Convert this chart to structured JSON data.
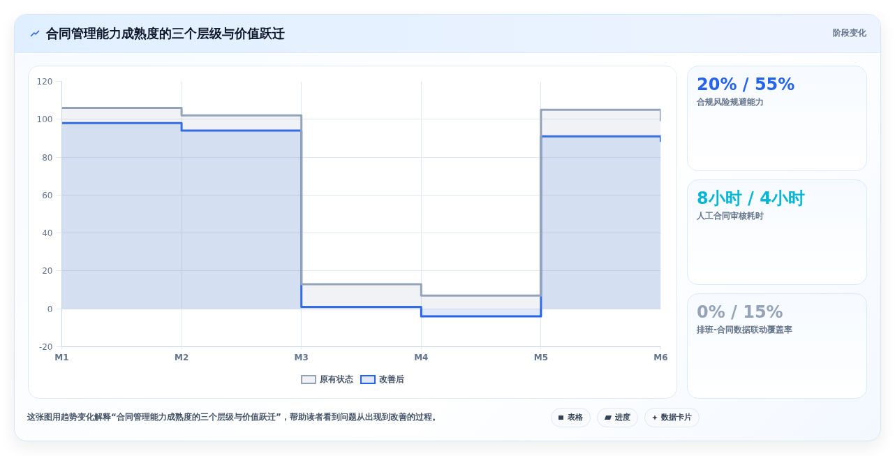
{
  "chart_data": [
    {
      "type": "area",
      "title": "合同管理能力成熟度的三个层级与价值跃迁",
      "categories": [
        "M1",
        "M2",
        "M3",
        "M4",
        "M5",
        "M6"
      ],
      "series": [
        {
          "name": "原有状态",
          "color": "#94a3b8",
          "x": [
            "M1",
            "M2",
            "M2",
            "M3",
            "M3",
            "M4",
            "M4",
            "M5",
            "M5",
            "M6",
            "M6"
          ],
          "values": [
            106,
            106,
            102,
            102,
            13,
            13,
            7,
            7,
            105,
            105,
            99
          ]
        },
        {
          "name": "改善后",
          "color": "#2563eb",
          "x": [
            "M1",
            "M2",
            "M2",
            "M3",
            "M3",
            "M4",
            "M4",
            "M5",
            "M5",
            "M6",
            "M6"
          ],
          "values": [
            98,
            98,
            94,
            94,
            1,
            1,
            -4,
            -4,
            91,
            91,
            88
          ]
        }
      ],
      "ylim": [
        -20,
        120
      ],
      "yticks": [
        -20,
        0,
        20,
        40,
        60,
        80,
        100,
        120
      ],
      "grid": true,
      "legend": "bottom",
      "annotations": [
        "这张图用趋势变化解释“合同管理能力成熟度的三个层级与价值跃迁”，帮助读者看到问题从出现到改善的过程。"
      ]
    },
    {
      "type": "other",
      "title": "20% / 55%",
      "subtitle": "合规风险规避能力",
      "color": "#2563eb",
      "annotations": [
        "阶段变化"
      ]
    },
    {
      "type": "other",
      "title": "8小时 / 4小时",
      "subtitle": "人工合同审核耗时",
      "color": "#06b6d4"
    },
    {
      "type": "other",
      "title": "0% / 15%",
      "subtitle": "排班-合同数据联动覆盖率",
      "color": "#94a3b8"
    },
    {
      "type": "other",
      "annotations": [
        "表格",
        "进度",
        "数据卡片"
      ]
    }
  ]
}
